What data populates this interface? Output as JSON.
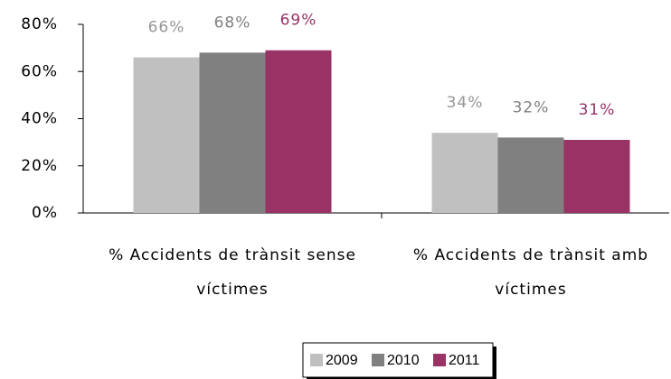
{
  "chart_data": {
    "type": "bar",
    "categories": [
      "% Accidents de trànsit sense víctimes",
      "% Accidents de trànsit amb víctimes"
    ],
    "series": [
      {
        "name": "2009",
        "color": "#c0c0c0",
        "label_color": "#969696",
        "values": [
          66,
          34
        ],
        "value_labels": [
          "66%",
          "34%"
        ]
      },
      {
        "name": "2010",
        "color": "#808080",
        "label_color": "#808080",
        "values": [
          68,
          32
        ],
        "value_labels": [
          "68%",
          "32%"
        ]
      },
      {
        "name": "2011",
        "color": "#993366",
        "label_color": "#993366",
        "values": [
          69,
          31
        ],
        "value_labels": [
          "69%",
          "31%"
        ]
      }
    ],
    "ylim": [
      0,
      80
    ],
    "yticks": [
      {
        "value": 0,
        "label": "0%"
      },
      {
        "value": 20,
        "label": "20%"
      },
      {
        "value": 40,
        "label": "40%"
      },
      {
        "value": 60,
        "label": "60%"
      },
      {
        "value": 80,
        "label": "80%"
      }
    ],
    "legend": "bottom"
  }
}
